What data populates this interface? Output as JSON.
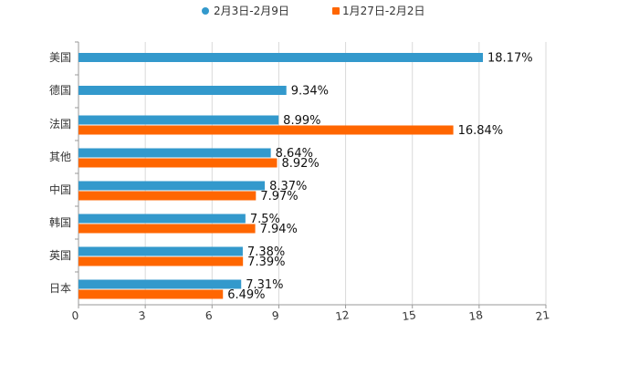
{
  "chart_data": {
    "type": "bar",
    "orientation": "horizontal",
    "title": "",
    "xlabel": "",
    "ylabel": "",
    "xlim": [
      0,
      21
    ],
    "x_ticks": [
      0,
      3,
      6,
      9,
      12,
      15,
      18,
      21
    ],
    "grid": true,
    "legend_position": "top-center",
    "categories": [
      "美国",
      "德国",
      "法国",
      "其他",
      "中国",
      "韩国",
      "英国",
      "日本"
    ],
    "series": [
      {
        "name": "2月3日-2月9日",
        "color": "#3399cc",
        "values": [
          18.17,
          9.34,
          8.99,
          8.64,
          8.37,
          7.5,
          7.38,
          7.31
        ],
        "labels": [
          "18.17%",
          "9.34%",
          "8.99%",
          "8.64%",
          "8.37%",
          "7.5%",
          "7.38%",
          "7.31%"
        ]
      },
      {
        "name": "1月27日-2月2日",
        "color": "#ff6600",
        "values": [
          null,
          null,
          16.84,
          8.92,
          7.97,
          7.94,
          7.39,
          6.49
        ],
        "labels": [
          null,
          null,
          "16.84%",
          "8.92%",
          "7.97%",
          "7.94%",
          "7.39%",
          "6.49%"
        ]
      }
    ]
  }
}
